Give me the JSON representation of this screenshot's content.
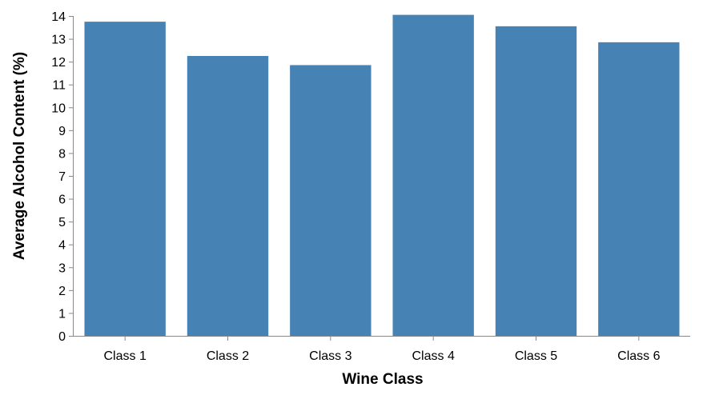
{
  "chart_data": {
    "type": "bar",
    "categories": [
      "Class 1",
      "Class 2",
      "Class 3",
      "Class 4",
      "Class 5",
      "Class 6"
    ],
    "values": [
      13.75,
      12.25,
      11.85,
      14.05,
      13.55,
      12.85
    ],
    "xlabel": "Wine Class",
    "ylabel": "Average Alcohol Content (%)",
    "ylim": [
      0,
      14
    ],
    "yticks": [
      0,
      1,
      2,
      3,
      4,
      5,
      6,
      7,
      8,
      9,
      10,
      11,
      12,
      13,
      14
    ],
    "bar_color": "#4682b4",
    "axis_color": "#888888",
    "grid": false
  }
}
